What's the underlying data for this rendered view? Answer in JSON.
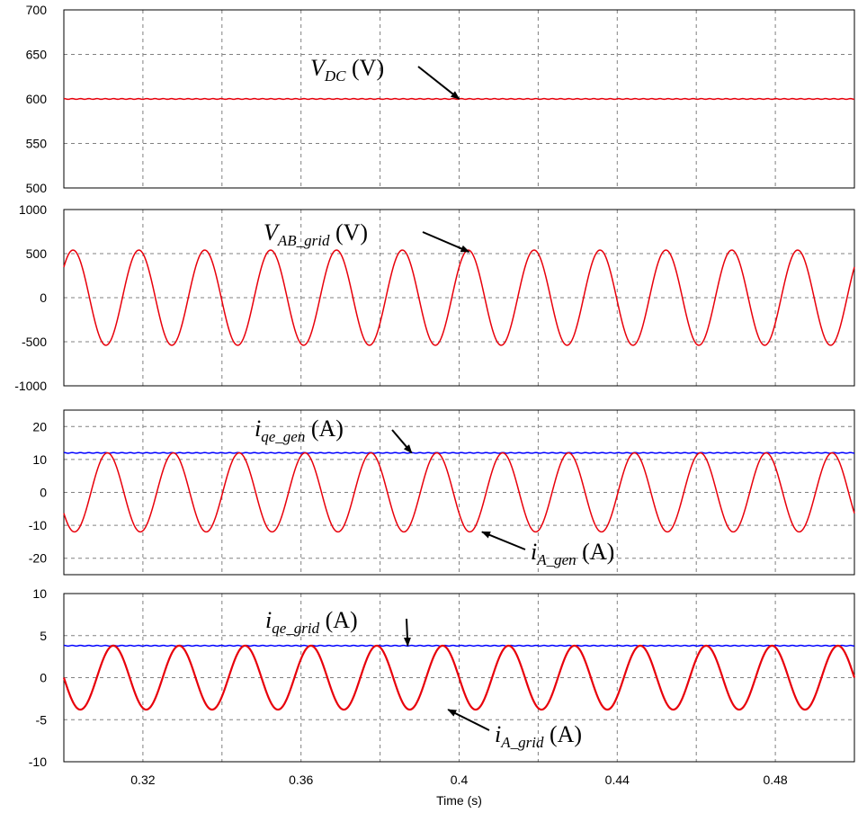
{
  "chart_data": [
    {
      "type": "line",
      "xlim": [
        0.3,
        0.5
      ],
      "ylim": [
        500,
        700
      ],
      "yticks": [
        500,
        550,
        600,
        650,
        700
      ],
      "grid": true,
      "series": [
        {
          "name": "V_DC (V)",
          "color": "#e8000b",
          "kind": "constant",
          "value": 600
        }
      ],
      "annotations": [
        {
          "main": "V",
          "sub": "DC",
          "suffix": " (V)",
          "arrow_to": [
            0.4,
            600
          ]
        }
      ]
    },
    {
      "type": "line",
      "xlim": [
        0.3,
        0.5
      ],
      "ylim": [
        -1000,
        1000
      ],
      "yticks": [
        -1000,
        -500,
        0,
        500,
        1000
      ],
      "grid": true,
      "series": [
        {
          "name": "V_AB_grid (V)",
          "color": "#e8000b",
          "kind": "sine",
          "amplitude": 540,
          "frequency_hz": 60,
          "phase_deg": 40
        }
      ],
      "annotations": [
        {
          "main": "V",
          "sub": "AB_grid",
          "suffix": " (V)",
          "arrow_to": [
            0.4025,
            520
          ]
        }
      ]
    },
    {
      "type": "line",
      "xlim": [
        0.3,
        0.5
      ],
      "ylim": [
        -25,
        25
      ],
      "yticks": [
        -20,
        -10,
        0,
        10,
        20
      ],
      "grid": true,
      "series": [
        {
          "name": "i_qe_gen (A)",
          "color": "#0000ff",
          "kind": "constant",
          "value": 12
        },
        {
          "name": "i_A_gen (A)",
          "color": "#e8000b",
          "kind": "sine",
          "amplitude": 12,
          "frequency_hz": 60,
          "phase_deg": 212
        }
      ],
      "annotations": [
        {
          "main": "i",
          "sub": "qe_gen",
          "suffix": " (A)",
          "arrow_to": [
            0.388,
            12
          ]
        },
        {
          "main": "i",
          "sub": "A_gen",
          "suffix": " (A)",
          "arrow_to": [
            0.4058,
            -12
          ]
        }
      ]
    },
    {
      "type": "line",
      "xlim": [
        0.3,
        0.5
      ],
      "ylim": [
        -10,
        10
      ],
      "yticks": [
        -10,
        -5,
        0,
        5,
        10
      ],
      "grid": true,
      "xticks": [
        0.32,
        0.36,
        0.4,
        0.44,
        0.48
      ],
      "xlabel": "Time (s)",
      "series": [
        {
          "name": "i_qe_grid (A)",
          "color": "#0000ff",
          "kind": "constant",
          "value": 3.8
        },
        {
          "name": "i_A_grid (A)",
          "color": "#e8000b",
          "kind": "sine",
          "amplitude": 3.8,
          "frequency_hz": 60,
          "phase_deg": 180
        }
      ],
      "annotations": [
        {
          "main": "i",
          "sub": "qe_grid",
          "suffix": " (A)",
          "arrow_to": [
            0.387,
            3.8
          ]
        },
        {
          "main": "i",
          "sub": "A_grid",
          "suffix": " (A)",
          "arrow_to": [
            0.3972,
            -3.8
          ]
        }
      ]
    }
  ]
}
